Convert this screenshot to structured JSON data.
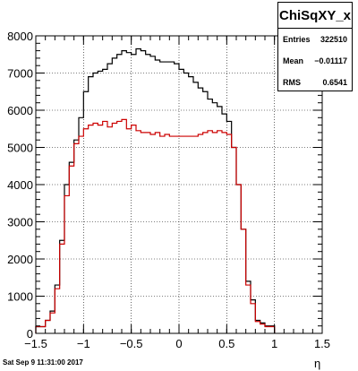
{
  "chart_data": {
    "type": "histogram",
    "title": "ChiSqXY_x",
    "xlabel": "η",
    "ylabel": "",
    "xlim": [
      -1.5,
      1.5
    ],
    "ylim": [
      0,
      8000
    ],
    "x_ticks": [
      "−1.5",
      "−1",
      "−0.5",
      "0",
      "0.5",
      "1",
      "1.5"
    ],
    "y_ticks": [
      "0",
      "1000",
      "2000",
      "3000",
      "4000",
      "5000",
      "6000",
      "7000",
      "8000"
    ],
    "grid": true,
    "bin_edges_start": -1.5,
    "bin_width": 0.05,
    "series": [
      {
        "color": "#000000",
        "values": [
          180,
          180,
          350,
          600,
          1300,
          2500,
          4000,
          4600,
          5200,
          5800,
          6500,
          6900,
          7000,
          7050,
          7100,
          7250,
          7400,
          7500,
          7600,
          7550,
          7500,
          7650,
          7600,
          7500,
          7450,
          7350,
          7300,
          7300,
          7300,
          7250,
          7100,
          7000,
          6900,
          6750,
          6600,
          6500,
          6300,
          6200,
          6100,
          5900,
          5700,
          5000,
          4000,
          2800,
          1400,
          900,
          350,
          280,
          200,
          200
        ]
      },
      {
        "color": "#cc0000",
        "values": [
          180,
          180,
          350,
          550,
          1200,
          2400,
          3700,
          4500,
          5100,
          5300,
          5500,
          5600,
          5650,
          5600,
          5700,
          5550,
          5650,
          5700,
          5750,
          5500,
          5600,
          5450,
          5400,
          5400,
          5350,
          5400,
          5300,
          5350,
          5300,
          5300,
          5300,
          5300,
          5300,
          5300,
          5350,
          5400,
          5450,
          5400,
          5450,
          5400,
          5350,
          5000,
          4000,
          2800,
          1300,
          800,
          320,
          250,
          180,
          180
        ]
      }
    ],
    "stats": {
      "title": "ChiSqXY_x",
      "rows": [
        {
          "label": "Entries",
          "value": "322510"
        },
        {
          "label": "Mean",
          "value": "−0.01117"
        },
        {
          "label": "RMS",
          "value": "0.6541"
        }
      ]
    }
  },
  "footer": {
    "date": "Sat Sep  9 11:31:00 2017"
  }
}
